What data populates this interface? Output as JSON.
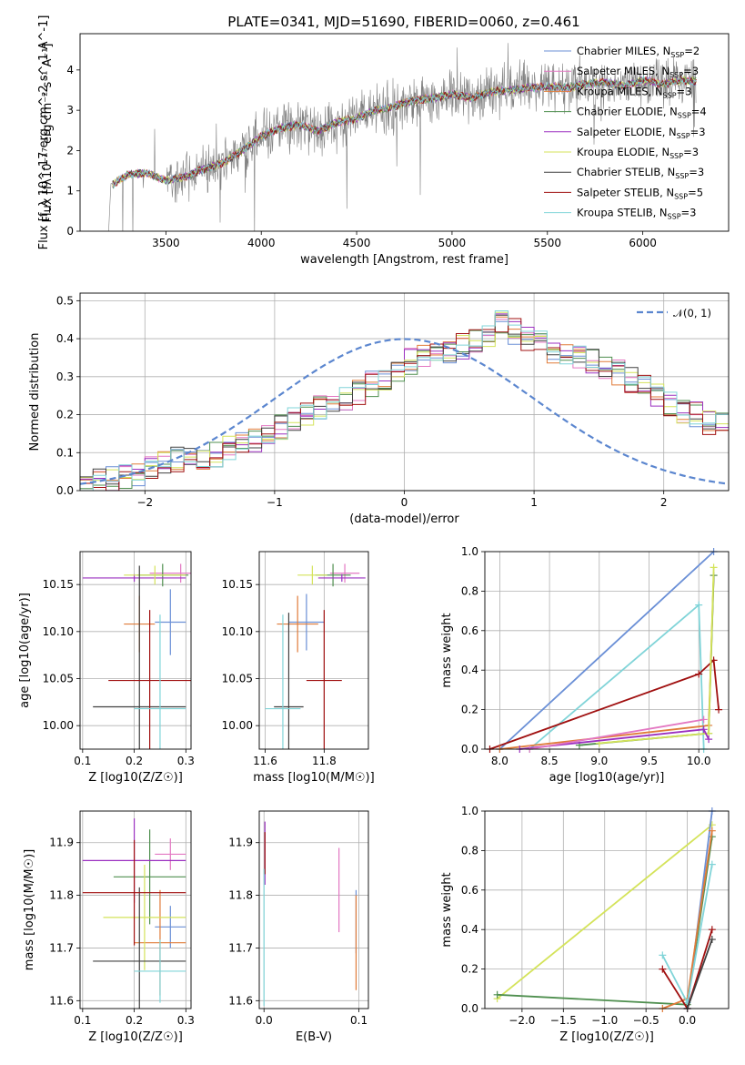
{
  "figure": {
    "title": "PLATE=0341, MJD=51690, FIBERID=0060, z=0.461"
  },
  "colors": {
    "Chabrier MILES": "#6a8fd6",
    "Salpeter MILES": "#e377c2",
    "Kroupa MILES": "#e07b39",
    "Chabrier ELODIE": "#4f8f4f",
    "Salpeter ELODIE": "#9b30c0",
    "Kroupa ELODIE": "#d4e35a",
    "Chabrier STELIB": "#404040",
    "Salpeter STELIB": "#a01010",
    "Kroupa STELIB": "#80d4d8",
    "data": "#808080"
  },
  "chart_data": [
    {
      "id": "spectrum",
      "type": "line",
      "title": "PLATE=0341, MJD=51690, FIBERID=0060, z=0.461",
      "xlabel": "wavelength [Angstrom, rest frame]",
      "ylabel": "Flux [f_λ 10^-17 erg cm^-2 s^-1 A^-1]",
      "xlim": [
        3050,
        6450
      ],
      "ylim": [
        0,
        4.9
      ],
      "xticks": [
        3500,
        4000,
        4500,
        5000,
        5500,
        6000
      ],
      "yticks": [
        0,
        1,
        2,
        3,
        4
      ],
      "grid": false,
      "legend_position": "top-right",
      "legend": [
        {
          "name": "Chabrier MILES",
          "nssp": "2"
        },
        {
          "name": "Salpeter MILES",
          "nssp": "3"
        },
        {
          "name": "Kroupa MILES",
          "nssp": "3"
        },
        {
          "name": "Chabrier ELODIE",
          "nssp": "4"
        },
        {
          "name": "Salpeter ELODIE",
          "nssp": "3"
        },
        {
          "name": "Kroupa ELODIE",
          "nssp": "3"
        },
        {
          "name": "Chabrier STELIB",
          "nssp": "3"
        },
        {
          "name": "Salpeter STELIB",
          "nssp": "5"
        },
        {
          "name": "Kroupa STELIB",
          "nssp": "3"
        }
      ],
      "model_x": [
        3220,
        3300,
        3400,
        3500,
        3600,
        3700,
        3800,
        3900,
        4000,
        4100,
        4200,
        4300,
        4400,
        4500,
        4600,
        4700,
        4800,
        4900,
        5000,
        5100,
        5200,
        5300,
        5400,
        5500,
        5600,
        5700,
        5800,
        5900,
        6000,
        6100,
        6200,
        6300
      ],
      "model_y": [
        1.15,
        1.4,
        1.45,
        1.25,
        1.35,
        1.55,
        1.7,
        2.0,
        2.35,
        2.55,
        2.65,
        2.5,
        2.7,
        2.8,
        3.0,
        3.1,
        3.25,
        3.3,
        3.4,
        3.3,
        3.45,
        3.5,
        3.55,
        3.6,
        3.55,
        3.65,
        3.7,
        3.6,
        3.75,
        3.65,
        3.75,
        3.7
      ]
    },
    {
      "id": "residuals",
      "type": "histogram",
      "xlabel": "(data-model)/error",
      "ylabel": "Normed distribution",
      "xlim": [
        -2.5,
        2.5
      ],
      "ylim": [
        0,
        0.52
      ],
      "xticks": [
        -2,
        -1,
        0,
        1,
        2
      ],
      "yticks": [
        0.0,
        0.1,
        0.2,
        0.3,
        0.4,
        0.5
      ],
      "grid": true,
      "legend_position": "top-right",
      "legend": [
        "𝒩(0, 1)"
      ],
      "bin_width": 0.1,
      "bins_start": -2.5,
      "hist": [
        0.02,
        0.025,
        0.03,
        0.035,
        0.045,
        0.06,
        0.07,
        0.08,
        0.09,
        0.08,
        0.095,
        0.11,
        0.12,
        0.13,
        0.15,
        0.17,
        0.19,
        0.2,
        0.22,
        0.23,
        0.24,
        0.26,
        0.28,
        0.3,
        0.32,
        0.34,
        0.35,
        0.36,
        0.37,
        0.38,
        0.39,
        0.4,
        0.44,
        0.42,
        0.4,
        0.39,
        0.37,
        0.36,
        0.35,
        0.34,
        0.33,
        0.31,
        0.29,
        0.27,
        0.25,
        0.23,
        0.21,
        0.2,
        0.18,
        0.17
      ]
    },
    {
      "id": "age-vs-Z",
      "type": "errorbar",
      "xlabel": "Z [log10(Z/Z☉)]",
      "ylabel": "age [log10(age/yr)]",
      "xlim": [
        0.095,
        0.31
      ],
      "ylim": [
        9.975,
        10.185
      ],
      "xticks": [
        0.1,
        0.2,
        0.3
      ],
      "yticks": [
        10.0,
        10.05,
        10.1,
        10.15
      ],
      "grid": true,
      "points": [
        {
          "series": "Chabrier MILES",
          "x": 0.27,
          "y": 10.11,
          "xe": 0.03,
          "ye": 0.035
        },
        {
          "series": "Salpeter MILES",
          "x": 0.29,
          "y": 10.162,
          "xe": 0.06,
          "ye": 0.01
        },
        {
          "series": "Kroupa MILES",
          "x": 0.21,
          "y": 10.108,
          "xe": 0.03,
          "ye": 0.03
        },
        {
          "series": "Chabrier ELODIE",
          "x": 0.255,
          "y": 10.16,
          "xe": 0.05,
          "ye": 0.012
        },
        {
          "series": "Salpeter ELODIE",
          "x": 0.2,
          "y": 10.157,
          "xe": 0.1,
          "ye": 0.004
        },
        {
          "series": "Kroupa ELODIE",
          "x": 0.24,
          "y": 10.16,
          "xe": 0.06,
          "ye": 0.01
        },
        {
          "series": "Chabrier STELIB",
          "x": 0.21,
          "y": 10.02,
          "xe": 0.09,
          "ye": 0.15
        },
        {
          "series": "Salpeter STELIB",
          "x": 0.23,
          "y": 10.048,
          "xe": 0.08,
          "ye": 0.075
        },
        {
          "series": "Kroupa STELIB",
          "x": 0.25,
          "y": 10.018,
          "xe": 0.05,
          "ye": 0.1
        }
      ]
    },
    {
      "id": "age-vs-mass",
      "type": "errorbar",
      "xlabel": "mass [log10(M/M☉)]",
      "ylabel": "",
      "xlim": [
        11.58,
        11.95
      ],
      "ylim": [
        9.975,
        10.185
      ],
      "xticks": [
        11.6,
        11.8
      ],
      "yticks": [
        10.0,
        10.05,
        10.1,
        10.15
      ],
      "grid": true,
      "points": [
        {
          "series": "Chabrier MILES",
          "x": 11.74,
          "y": 10.11,
          "xe": 0.06,
          "ye": 0.03
        },
        {
          "series": "Salpeter MILES",
          "x": 11.87,
          "y": 10.162,
          "xe": 0.05,
          "ye": 0.01
        },
        {
          "series": "Kroupa MILES",
          "x": 11.71,
          "y": 10.108,
          "xe": 0.07,
          "ye": 0.03
        },
        {
          "series": "Chabrier ELODIE",
          "x": 11.83,
          "y": 10.16,
          "xe": 0.06,
          "ye": 0.012
        },
        {
          "series": "Salpeter ELODIE",
          "x": 11.86,
          "y": 10.157,
          "xe": 0.08,
          "ye": 0.004
        },
        {
          "series": "Kroupa ELODIE",
          "x": 11.76,
          "y": 10.16,
          "xe": 0.05,
          "ye": 0.01
        },
        {
          "series": "Chabrier STELIB",
          "x": 11.68,
          "y": 10.02,
          "xe": 0.05,
          "ye": 0.1
        },
        {
          "series": "Salpeter STELIB",
          "x": 11.8,
          "y": 10.048,
          "xe": 0.06,
          "ye": 0.075
        },
        {
          "series": "Kroupa STELIB",
          "x": 11.66,
          "y": 10.018,
          "xe": 0.06,
          "ye": 0.1
        }
      ]
    },
    {
      "id": "weight-vs-age",
      "type": "line",
      "xlabel": "age [log10(age/yr)]",
      "ylabel": "mass weight",
      "xlim": [
        7.85,
        10.3
      ],
      "ylim": [
        0,
        1.0
      ],
      "xticks": [
        8.0,
        8.5,
        9.0,
        9.5,
        10.0
      ],
      "yticks": [
        0.0,
        0.2,
        0.4,
        0.6,
        0.8,
        1.0
      ],
      "grid": true,
      "series": [
        {
          "series": "Chabrier MILES",
          "x": [
            8.0,
            10.15
          ],
          "y": [
            0.0,
            1.0
          ]
        },
        {
          "series": "Kroupa STELIB",
          "x": [
            8.3,
            10.0,
            10.05
          ],
          "y": [
            0.0,
            0.73,
            0.0
          ]
        },
        {
          "series": "Salpeter STELIB",
          "x": [
            7.9,
            10.0,
            10.15,
            10.2
          ],
          "y": [
            0.0,
            0.38,
            0.45,
            0.2
          ]
        },
        {
          "series": "Kroupa MILES",
          "x": [
            8.0,
            10.1,
            10.15
          ],
          "y": [
            0.0,
            0.12,
            0.88
          ]
        },
        {
          "series": "Chabrier ELODIE",
          "x": [
            8.8,
            10.1,
            10.15
          ],
          "y": [
            0.02,
            0.08,
            0.88
          ]
        },
        {
          "series": "Kroupa ELODIE",
          "x": [
            9.0,
            10.1,
            10.15
          ],
          "y": [
            0.03,
            0.08,
            0.92
          ]
        },
        {
          "series": "Salpeter ELODIE",
          "x": [
            8.2,
            10.05,
            10.1
          ],
          "y": [
            0.0,
            0.1,
            0.05
          ]
        },
        {
          "series": "Salpeter MILES",
          "x": [
            8.3,
            10.05
          ],
          "y": [
            0.0,
            0.15
          ]
        }
      ]
    },
    {
      "id": "mass-vs-Z",
      "type": "errorbar",
      "xlabel": "Z [log10(Z/Z☉)]",
      "ylabel": "mass [log10(M/M☉)]",
      "xlim": [
        0.095,
        0.31
      ],
      "ylim": [
        11.585,
        11.96
      ],
      "xticks": [
        0.1,
        0.2,
        0.3
      ],
      "yticks": [
        11.6,
        11.7,
        11.8,
        11.9
      ],
      "grid": true,
      "points": [
        {
          "series": "Chabrier MILES",
          "x": 0.27,
          "y": 11.74,
          "xe": 0.03,
          "ye": 0.04
        },
        {
          "series": "Salpeter MILES",
          "x": 0.27,
          "y": 11.878,
          "xe": 0.03,
          "ye": 0.03
        },
        {
          "series": "Kroupa MILES",
          "x": 0.25,
          "y": 11.71,
          "xe": 0.05,
          "ye": 0.1
        },
        {
          "series": "Chabrier ELODIE",
          "x": 0.23,
          "y": 11.835,
          "xe": 0.07,
          "ye": 0.09
        },
        {
          "series": "Salpeter ELODIE",
          "x": 0.2,
          "y": 11.866,
          "xe": 0.1,
          "ye": 0.08
        },
        {
          "series": "Kroupa ELODIE",
          "x": 0.22,
          "y": 11.758,
          "xe": 0.08,
          "ye": 0.1
        },
        {
          "series": "Chabrier STELIB",
          "x": 0.21,
          "y": 11.675,
          "xe": 0.09,
          "ye": 0.14
        },
        {
          "series": "Salpeter STELIB",
          "x": 0.2,
          "y": 11.805,
          "xe": 0.1,
          "ye": 0.1
        },
        {
          "series": "Kroupa STELIB",
          "x": 0.25,
          "y": 11.656,
          "xe": 0.05,
          "ye": 0.06
        }
      ]
    },
    {
      "id": "mass-vs-ebv",
      "type": "errorbar",
      "xlabel": "E(B-V)",
      "ylabel": "",
      "xlim": [
        -0.005,
        0.11
      ],
      "ylim": [
        11.585,
        11.96
      ],
      "xticks": [
        0.0,
        0.1
      ],
      "yticks": [
        11.6,
        11.7,
        11.8,
        11.9
      ],
      "grid": true,
      "points": [
        {
          "series": "Chabrier MILES",
          "x": 0.097,
          "y": 11.75,
          "xe": 0,
          "ye": 0.06
        },
        {
          "series": "Salpeter MILES",
          "x": 0.079,
          "y": 11.81,
          "xe": 0,
          "ye": 0.08
        },
        {
          "series": "Kroupa MILES",
          "x": 0.097,
          "y": 11.71,
          "xe": 0,
          "ye": 0.09
        },
        {
          "series": "Salpeter ELODIE",
          "x": 0.001,
          "y": 11.88,
          "xe": 0,
          "ye": 0.06
        },
        {
          "series": "Salpeter STELIB",
          "x": 0.001,
          "y": 11.88,
          "xe": 0,
          "ye": 0.04
        },
        {
          "series": "Kroupa STELIB",
          "x": 0.0,
          "y": 11.72,
          "xe": 0,
          "ye": 0.13
        }
      ]
    },
    {
      "id": "weight-vs-Z",
      "type": "line",
      "xlabel": "Z [log10(Z/Z☉)]",
      "ylabel": "mass weight",
      "xlim": [
        -2.45,
        0.5
      ],
      "ylim": [
        0,
        1.0
      ],
      "xticks": [
        -2.0,
        -1.5,
        -1.0,
        -0.5,
        0.0
      ],
      "yticks": [
        0.0,
        0.2,
        0.4,
        0.6,
        0.8,
        1.0
      ],
      "grid": true,
      "series": [
        {
          "series": "Kroupa ELODIE",
          "x": [
            -2.3,
            0.3
          ],
          "y": [
            0.05,
            0.93
          ]
        },
        {
          "series": "Chabrier ELODIE",
          "x": [
            -2.3,
            0.0,
            0.3
          ],
          "y": [
            0.07,
            0.02,
            0.87
          ]
        },
        {
          "series": "Chabrier MILES",
          "x": [
            0.0,
            0.3
          ],
          "y": [
            0.0,
            1.0
          ]
        },
        {
          "series": "Kroupa MILES",
          "x": [
            -0.3,
            0.0,
            0.3
          ],
          "y": [
            0.0,
            0.05,
            0.9
          ]
        },
        {
          "series": "Kroupa STELIB",
          "x": [
            -0.3,
            0.0,
            0.3
          ],
          "y": [
            0.27,
            0.03,
            0.73
          ]
        },
        {
          "series": "Salpeter STELIB",
          "x": [
            -0.3,
            0.0,
            0.3
          ],
          "y": [
            0.2,
            0.0,
            0.4
          ]
        },
        {
          "series": "Chabrier STELIB",
          "x": [
            0.0,
            0.3
          ],
          "y": [
            0.0,
            0.35
          ]
        }
      ]
    }
  ]
}
